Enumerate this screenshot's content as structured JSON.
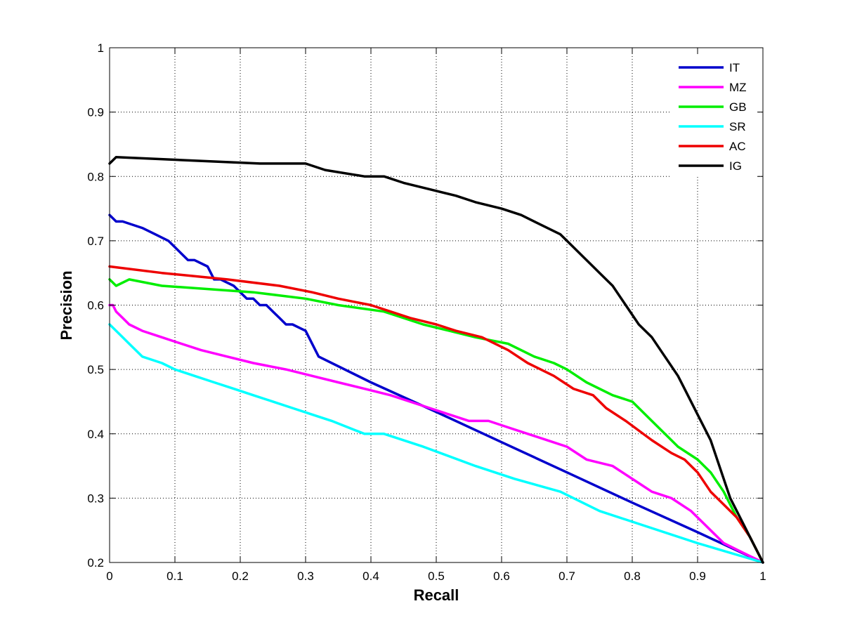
{
  "chart_data": {
    "type": "line",
    "title": "",
    "xlabel": "Recall",
    "ylabel": "Precision",
    "xlim": [
      0,
      1
    ],
    "ylim": [
      0.2,
      1
    ],
    "xticks": [
      0,
      0.1,
      0.2,
      0.3,
      0.4,
      0.5,
      0.6,
      0.7,
      0.8,
      0.9,
      1
    ],
    "yticks": [
      0.2,
      0.3,
      0.4,
      0.5,
      0.6,
      0.7,
      0.8,
      0.9,
      1
    ],
    "xtick_labels": [
      "0",
      "0.1",
      "0.2",
      "0.3",
      "0.4",
      "0.5",
      "0.6",
      "0.7",
      "0.8",
      "0.9",
      "1"
    ],
    "ytick_labels": [
      "0.2",
      "0.3",
      "0.4",
      "0.5",
      "0.6",
      "0.7",
      "0.8",
      "0.9",
      "1"
    ],
    "grid": "dotted",
    "legend_position": "top-right",
    "series": [
      {
        "name": "IT",
        "color": "#0000cc",
        "x": [
          0,
          0.01,
          0.02,
          0.05,
          0.07,
          0.09,
          0.1,
          0.11,
          0.12,
          0.13,
          0.15,
          0.16,
          0.17,
          0.19,
          0.2,
          0.21,
          0.22,
          0.23,
          0.24,
          0.25,
          0.26,
          0.27,
          0.28,
          0.29,
          0.3,
          0.32,
          0.4,
          0.5,
          0.6,
          0.7,
          0.8,
          0.9,
          1
        ],
        "y": [
          0.74,
          0.73,
          0.73,
          0.72,
          0.71,
          0.7,
          0.69,
          0.68,
          0.67,
          0.67,
          0.66,
          0.64,
          0.64,
          0.63,
          0.62,
          0.61,
          0.61,
          0.6,
          0.6,
          0.59,
          0.58,
          0.57,
          0.57,
          0.565,
          0.56,
          0.52,
          0.48,
          0.434,
          0.387,
          0.34,
          0.293,
          0.247,
          0.2
        ]
      },
      {
        "name": "MZ",
        "color": "#ff00ff",
        "x": [
          0,
          0.005,
          0.01,
          0.02,
          0.03,
          0.05,
          0.08,
          0.11,
          0.14,
          0.18,
          0.22,
          0.27,
          0.31,
          0.35,
          0.39,
          0.43,
          0.46,
          0.49,
          0.52,
          0.55,
          0.58,
          0.61,
          0.64,
          0.67,
          0.7,
          0.73,
          0.77,
          0.8,
          0.83,
          0.86,
          0.89,
          0.91,
          0.94,
          0.97,
          1
        ],
        "y": [
          0.6,
          0.6,
          0.59,
          0.58,
          0.57,
          0.56,
          0.55,
          0.54,
          0.53,
          0.52,
          0.51,
          0.5,
          0.49,
          0.48,
          0.47,
          0.46,
          0.45,
          0.44,
          0.43,
          0.42,
          0.42,
          0.41,
          0.4,
          0.39,
          0.38,
          0.36,
          0.35,
          0.33,
          0.31,
          0.3,
          0.28,
          0.26,
          0.23,
          0.215,
          0.2
        ]
      },
      {
        "name": "GB",
        "color": "#00ee00",
        "x": [
          0,
          0.01,
          0.03,
          0.08,
          0.22,
          0.3,
          0.35,
          0.42,
          0.48,
          0.52,
          0.56,
          0.61,
          0.65,
          0.68,
          0.7,
          0.73,
          0.77,
          0.8,
          0.84,
          0.87,
          0.9,
          0.92,
          0.94,
          0.96,
          0.98,
          1
        ],
        "y": [
          0.64,
          0.63,
          0.64,
          0.63,
          0.62,
          0.61,
          0.6,
          0.59,
          0.57,
          0.56,
          0.55,
          0.54,
          0.52,
          0.51,
          0.5,
          0.48,
          0.46,
          0.45,
          0.41,
          0.38,
          0.36,
          0.34,
          0.31,
          0.27,
          0.24,
          0.2
        ]
      },
      {
        "name": "SR",
        "color": "#00ffff",
        "x": [
          0,
          0.01,
          0.02,
          0.03,
          0.05,
          0.08,
          0.1,
          0.13,
          0.16,
          0.19,
          0.22,
          0.25,
          0.28,
          0.31,
          0.34,
          0.39,
          0.42,
          0.48,
          0.56,
          0.62,
          0.69,
          0.75,
          0.81,
          0.9,
          1
        ],
        "y": [
          0.57,
          0.56,
          0.55,
          0.54,
          0.52,
          0.51,
          0.5,
          0.49,
          0.48,
          0.47,
          0.46,
          0.45,
          0.44,
          0.43,
          0.42,
          0.4,
          0.4,
          0.38,
          0.35,
          0.33,
          0.31,
          0.28,
          0.26,
          0.23,
          0.2
        ]
      },
      {
        "name": "AC",
        "color": "#ee0000",
        "x": [
          0,
          0.08,
          0.18,
          0.26,
          0.31,
          0.35,
          0.4,
          0.46,
          0.5,
          0.53,
          0.57,
          0.61,
          0.64,
          0.68,
          0.71,
          0.74,
          0.76,
          0.79,
          0.83,
          0.86,
          0.88,
          0.9,
          0.92,
          0.94,
          0.96,
          0.98,
          1
        ],
        "y": [
          0.66,
          0.65,
          0.64,
          0.63,
          0.62,
          0.61,
          0.6,
          0.58,
          0.57,
          0.56,
          0.55,
          0.53,
          0.51,
          0.49,
          0.47,
          0.46,
          0.44,
          0.42,
          0.39,
          0.37,
          0.36,
          0.34,
          0.31,
          0.29,
          0.27,
          0.24,
          0.2
        ]
      },
      {
        "name": "IG",
        "color": "#000000",
        "x": [
          0,
          0.01,
          0.23,
          0.3,
          0.33,
          0.39,
          0.42,
          0.45,
          0.49,
          0.53,
          0.56,
          0.6,
          0.63,
          0.65,
          0.67,
          0.69,
          0.71,
          0.73,
          0.75,
          0.77,
          0.79,
          0.81,
          0.83,
          0.85,
          0.87,
          0.88,
          0.89,
          0.9,
          0.91,
          0.92,
          0.93,
          0.94,
          0.95,
          0.96,
          0.97,
          0.98,
          0.99,
          1
        ],
        "y": [
          0.82,
          0.83,
          0.82,
          0.82,
          0.81,
          0.8,
          0.8,
          0.79,
          0.78,
          0.77,
          0.76,
          0.75,
          0.74,
          0.73,
          0.72,
          0.71,
          0.69,
          0.67,
          0.65,
          0.63,
          0.6,
          0.57,
          0.55,
          0.52,
          0.49,
          0.47,
          0.45,
          0.43,
          0.41,
          0.39,
          0.36,
          0.33,
          0.3,
          0.28,
          0.26,
          0.24,
          0.22,
          0.2
        ]
      }
    ]
  }
}
